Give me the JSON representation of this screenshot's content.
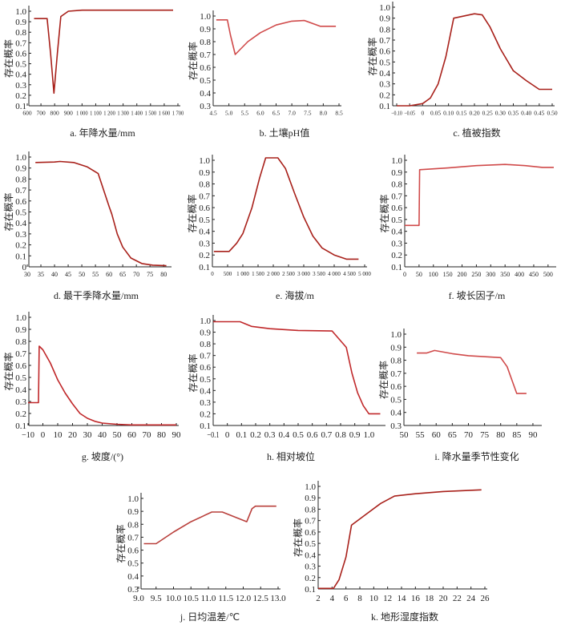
{
  "chart_data": [
    {
      "id": "a",
      "type": "line",
      "caption": "a. 年降水量/mm",
      "ylabel": "存在概率",
      "color": "#a8201a",
      "xlim": [
        600,
        1700
      ],
      "ylim": [
        0.1,
        1.0
      ],
      "xticks": [
        600,
        700,
        800,
        900,
        1000,
        1100,
        1200,
        1300,
        1400,
        1500,
        1600,
        1700
      ],
      "xtick_labels": [
        "600",
        "700",
        "800",
        "900",
        "1 000",
        "1 100",
        "1 200",
        "1 300",
        "1 400",
        "1 500",
        "1 600",
        "1 700"
      ],
      "yticks": [
        0.1,
        0.2,
        0.3,
        0.4,
        0.5,
        0.6,
        0.7,
        0.8,
        0.9,
        1.0
      ],
      "x": [
        650,
        745,
        770,
        795,
        820,
        845,
        900,
        1000,
        1665
      ],
      "y": [
        0.93,
        0.93,
        0.6,
        0.22,
        0.6,
        0.95,
        1.0,
        1.01,
        1.01
      ]
    },
    {
      "id": "b",
      "type": "line",
      "caption": "b. 土壤pH值",
      "ylabel": "存在概率",
      "color": "#d04a4a",
      "xlim": [
        4.5,
        8.5
      ],
      "ylim": [
        0.3,
        1.0
      ],
      "xticks": [
        4.5,
        5.0,
        5.5,
        6.0,
        6.5,
        7.0,
        7.5,
        8.0,
        8.5
      ],
      "xtick_labels": [
        "4.5",
        "5.0",
        "5.5",
        "6.0",
        "6.5",
        "7.0",
        "7.5",
        "8.0",
        "8.5"
      ],
      "yticks": [
        0.3,
        0.4,
        0.5,
        0.6,
        0.7,
        0.8,
        0.9,
        1.0
      ],
      "x": [
        4.6,
        4.95,
        5.05,
        5.2,
        5.6,
        6.0,
        6.5,
        7.0,
        7.4,
        7.9,
        8.4
      ],
      "y": [
        0.97,
        0.97,
        0.85,
        0.7,
        0.8,
        0.87,
        0.93,
        0.96,
        0.965,
        0.92,
        0.92
      ]
    },
    {
      "id": "c",
      "type": "line",
      "caption": "c. 植被指数",
      "ylabel": "存在概率",
      "color": "#a8201a",
      "xlim": [
        -0.1,
        0.5
      ],
      "ylim": [
        0.1,
        1.0
      ],
      "xticks": [
        -0.1,
        -0.05,
        0,
        0.05,
        0.1,
        0.15,
        0.2,
        0.25,
        0.3,
        0.35,
        0.4,
        0.45,
        0.5
      ],
      "xtick_labels": [
        "−0.10",
        "−0.05",
        "0",
        "0.05",
        "0.10",
        "0.15",
        "0.20",
        "0.25",
        "0.30",
        "0.35",
        "0.40",
        "0.45",
        "0.50"
      ],
      "yticks": [
        0.1,
        0.2,
        0.3,
        0.4,
        0.5,
        0.6,
        0.7,
        0.8,
        0.9,
        1.0
      ],
      "x": [
        -0.1,
        -0.05,
        0,
        0.03,
        0.06,
        0.09,
        0.12,
        0.2,
        0.23,
        0.26,
        0.3,
        0.35,
        0.4,
        0.45,
        0.5
      ],
      "y": [
        0.1,
        0.1,
        0.12,
        0.17,
        0.3,
        0.55,
        0.9,
        0.94,
        0.93,
        0.82,
        0.62,
        0.42,
        0.33,
        0.25,
        0.25
      ]
    },
    {
      "id": "d",
      "type": "line",
      "caption": "d. 最干季降水量/mm",
      "ylabel": "存在概率",
      "color": "#a8201a",
      "xlim": [
        30,
        82
      ],
      "ylim": [
        0,
        1.0
      ],
      "xticks": [
        30,
        35,
        40,
        45,
        50,
        55,
        60,
        65,
        70,
        75,
        80
      ],
      "xtick_labels": [
        "30",
        "35",
        "40",
        "45",
        "50",
        "55",
        "60",
        "65",
        "70",
        "75",
        "80"
      ],
      "yticks": [
        0,
        0.1,
        0.2,
        0.3,
        0.4,
        0.5,
        0.6,
        0.7,
        0.8,
        0.9,
        1.0
      ],
      "x": [
        33,
        40,
        42,
        47,
        52,
        56,
        58,
        60,
        61,
        63,
        65,
        68,
        72,
        76,
        81
      ],
      "y": [
        0.95,
        0.955,
        0.96,
        0.95,
        0.91,
        0.85,
        0.7,
        0.55,
        0.48,
        0.3,
        0.18,
        0.08,
        0.03,
        0.015,
        0.01
      ]
    },
    {
      "id": "e",
      "type": "line",
      "caption": "e. 海拔/m",
      "ylabel": "存在概率",
      "color": "#a8201a",
      "xlim": [
        0,
        5000
      ],
      "ylim": [
        0.1,
        1.0
      ],
      "xticks": [
        0,
        500,
        1000,
        1500,
        2000,
        2500,
        3000,
        3500,
        4000,
        4500,
        5000
      ],
      "xtick_labels": [
        "0",
        "500",
        "1 000",
        "1 500",
        "2 000",
        "2 500",
        "3 000",
        "3 500",
        "4 000",
        "4 500",
        "5 000"
      ],
      "yticks": [
        0.1,
        0.2,
        0.3,
        0.4,
        0.5,
        0.6,
        0.7,
        0.8,
        0.9,
        1.0
      ],
      "x": [
        50,
        550,
        800,
        1000,
        1300,
        1550,
        1750,
        2150,
        2400,
        2700,
        3000,
        3300,
        3600,
        4000,
        4400,
        4800
      ],
      "y": [
        0.23,
        0.23,
        0.3,
        0.38,
        0.6,
        0.85,
        1.02,
        1.02,
        0.93,
        0.72,
        0.52,
        0.36,
        0.26,
        0.2,
        0.165,
        0.165
      ]
    },
    {
      "id": "f",
      "type": "line",
      "caption": "f. 坡长因子/m",
      "ylabel": "存在概率",
      "color": "#d04a4a",
      "xlim": [
        0,
        520
      ],
      "ylim": [
        0.1,
        1.0
      ],
      "xticks": [
        0,
        50,
        100,
        150,
        200,
        250,
        300,
        350,
        400,
        450,
        500
      ],
      "xtick_labels": [
        "0",
        "50",
        "100",
        "150",
        "200",
        "250",
        "300",
        "350",
        "400",
        "450",
        "500"
      ],
      "yticks": [
        0.1,
        0.2,
        0.3,
        0.4,
        0.5,
        0.6,
        0.7,
        0.8,
        0.9,
        1.0
      ],
      "x": [
        0,
        50,
        52,
        150,
        250,
        350,
        420,
        480,
        520
      ],
      "y": [
        0.45,
        0.45,
        0.92,
        0.935,
        0.955,
        0.965,
        0.955,
        0.94,
        0.94
      ]
    },
    {
      "id": "g",
      "type": "line",
      "caption": "g. 坡度/(°)",
      "ylabel": "存在概率",
      "color": "#c0282a",
      "xlim": [
        -10,
        90
      ],
      "ylim": [
        0.1,
        1.0
      ],
      "xticks": [
        -10,
        0,
        10,
        20,
        30,
        40,
        50,
        60,
        70,
        80,
        90
      ],
      "xtick_labels": [
        "−10",
        "0",
        "10",
        "20",
        "30",
        "40",
        "50",
        "60",
        "70",
        "80",
        "90"
      ],
      "yticks": [
        0.1,
        0.2,
        0.3,
        0.4,
        0.5,
        0.6,
        0.7,
        0.8,
        0.9,
        1.0
      ],
      "x": [
        -10,
        -3,
        -2.5,
        0,
        5,
        10,
        15,
        20,
        25,
        30,
        35,
        40,
        50,
        60,
        90
      ],
      "y": [
        0.29,
        0.29,
        0.76,
        0.73,
        0.62,
        0.48,
        0.37,
        0.28,
        0.2,
        0.16,
        0.135,
        0.12,
        0.11,
        0.105,
        0.105
      ]
    },
    {
      "id": "h",
      "type": "line",
      "caption": "h. 相对坡位",
      "ylabel": "存在概率",
      "color": "#c0282a",
      "xlim": [
        -0.1,
        1.1
      ],
      "ylim": [
        0.1,
        1.0
      ],
      "xticks": [
        -0.1,
        0,
        0.1,
        0.2,
        0.3,
        0.4,
        0.5,
        0.6,
        0.7,
        0.8,
        0.9,
        1.0
      ],
      "xtick_labels": [
        "−0.1",
        "0",
        "0.1",
        "0.2",
        "0.3",
        "0.4",
        "0.5",
        "0.6",
        "0.7",
        "0.8",
        "0.9",
        "1.0"
      ],
      "yticks": [
        0.1,
        0.2,
        0.3,
        0.4,
        0.5,
        0.6,
        0.7,
        0.8,
        0.9,
        1.0
      ],
      "x": [
        -0.1,
        0.09,
        0.17,
        0.3,
        0.5,
        0.74,
        0.84,
        0.88,
        0.92,
        0.96,
        1.0,
        1.08
      ],
      "y": [
        0.99,
        0.99,
        0.95,
        0.93,
        0.915,
        0.91,
        0.77,
        0.55,
        0.38,
        0.27,
        0.2,
        0.2
      ]
    },
    {
      "id": "i",
      "type": "line",
      "caption": "i. 降水量季节性变化",
      "ylabel": "存在概率",
      "color": "#d04a4a",
      "xlim": [
        50,
        92
      ],
      "ylim": [
        0.3,
        1.0
      ],
      "xticks": [
        50,
        55,
        60,
        65,
        70,
        75,
        80,
        85,
        90
      ],
      "xtick_labels": [
        "50",
        "55",
        "60",
        "65",
        "70",
        "75",
        "80",
        "85",
        "90"
      ],
      "yticks": [
        0.3,
        0.4,
        0.5,
        0.6,
        0.7,
        0.8,
        0.9,
        1.0
      ],
      "x": [
        54,
        57,
        59.5,
        65,
        70,
        80,
        82,
        85,
        88
      ],
      "y": [
        0.855,
        0.855,
        0.875,
        0.85,
        0.835,
        0.82,
        0.75,
        0.545,
        0.545
      ]
    },
    {
      "id": "j",
      "type": "line",
      "caption": "j. 日均温差/℃",
      "ylabel": "存在概率",
      "color": "#b9403c",
      "xlim": [
        9.0,
        13.0
      ],
      "ylim": [
        0.3,
        1.0
      ],
      "xticks": [
        9.0,
        9.5,
        10.0,
        10.5,
        11.0,
        11.5,
        12.0,
        12.5,
        13.0
      ],
      "xtick_labels": [
        "9.0",
        "9.5",
        "10.0",
        "10.5",
        "11.0",
        "11.5",
        "12.0",
        "12.5",
        "13.0"
      ],
      "yticks": [
        0.3,
        0.4,
        0.5,
        0.6,
        0.7,
        0.8,
        0.9,
        1.0
      ],
      "x": [
        9.15,
        9.5,
        10.0,
        10.5,
        11.1,
        11.4,
        12.1,
        12.25,
        12.35,
        12.95
      ],
      "y": [
        0.65,
        0.65,
        0.74,
        0.82,
        0.895,
        0.895,
        0.82,
        0.92,
        0.94,
        0.94
      ]
    },
    {
      "id": "k",
      "type": "line",
      "caption": "k. 地形湿度指数",
      "ylabel": "存在概率",
      "color": "#a8201a",
      "xlim": [
        2,
        26
      ],
      "ylim": [
        0.1,
        1.0
      ],
      "xticks": [
        2,
        4,
        6,
        8,
        10,
        12,
        14,
        16,
        18,
        20,
        22,
        24,
        26
      ],
      "xtick_labels": [
        "2",
        "4",
        "6",
        "8",
        "10",
        "12",
        "14",
        "16",
        "18",
        "20",
        "22",
        "24",
        "26"
      ],
      "yticks": [
        0.1,
        0.2,
        0.3,
        0.4,
        0.5,
        0.6,
        0.7,
        0.8,
        0.9,
        1.0
      ],
      "x": [
        2,
        4.2,
        5,
        6,
        6.8,
        9,
        11,
        13,
        16,
        20,
        25.5
      ],
      "y": [
        0.105,
        0.105,
        0.18,
        0.38,
        0.66,
        0.76,
        0.85,
        0.915,
        0.935,
        0.955,
        0.97
      ]
    }
  ]
}
